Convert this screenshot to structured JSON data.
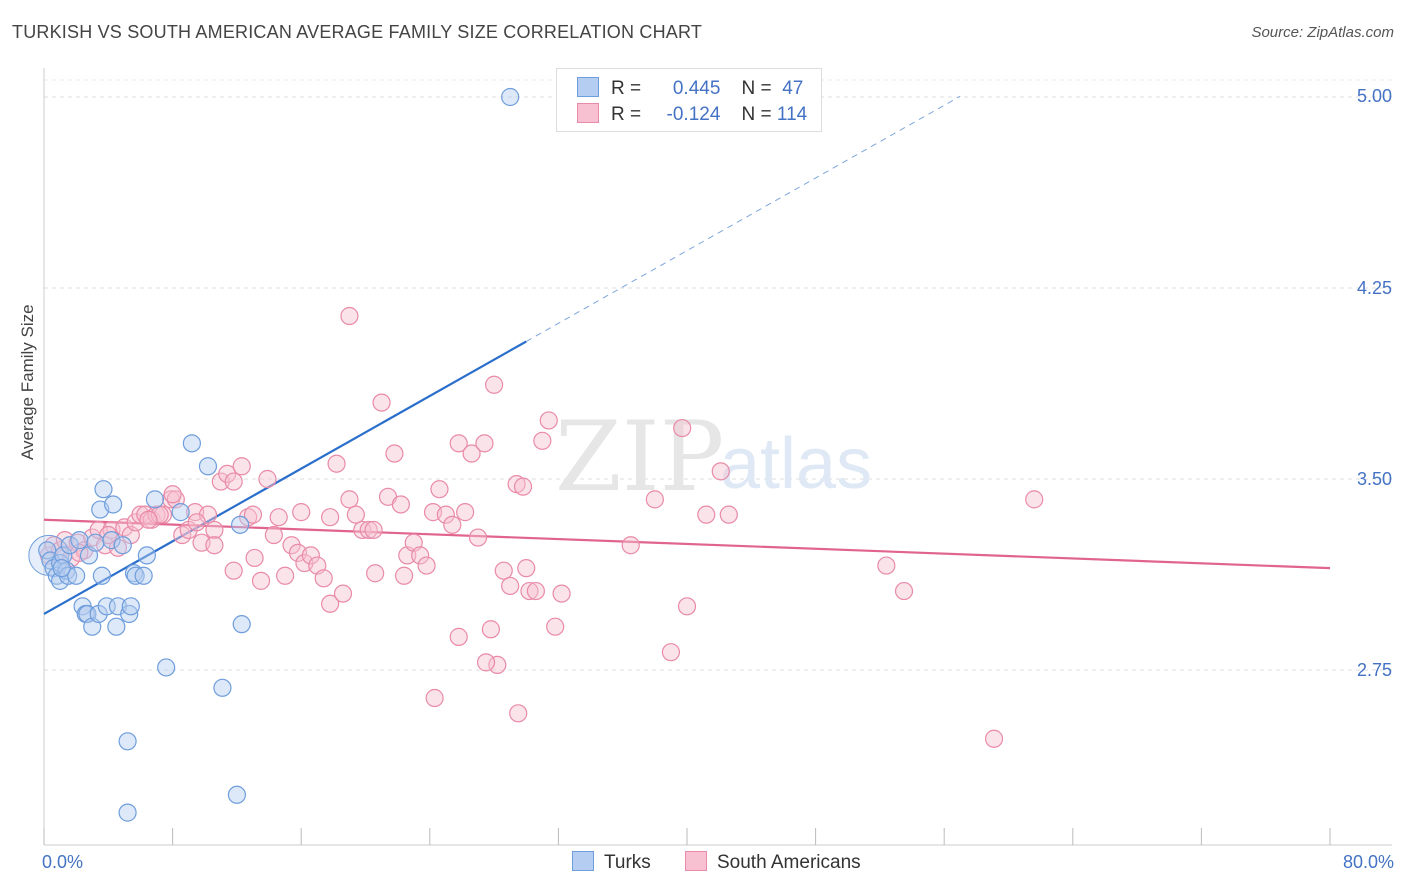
{
  "title": "TURKISH VS SOUTH AMERICAN AVERAGE FAMILY SIZE CORRELATION CHART",
  "source": "Source: ZipAtlas.com",
  "watermark": {
    "zip": "ZIP",
    "atlas": "atlas"
  },
  "legend": {
    "turks": {
      "r_label": "R =",
      "r_value": "0.445",
      "n_label": "N =",
      "n_value": "47"
    },
    "south": {
      "r_label": "R =",
      "r_value": "-0.124",
      "n_label": "N =",
      "n_value": "114"
    }
  },
  "bottom_legend": {
    "turks": "Turks",
    "south": "South Americans"
  },
  "colors": {
    "turks_fill": "#b4cdf0",
    "turks_stroke": "#6f9edc",
    "turks_line": "#2b6fcc",
    "south_fill": "#f7c1d1",
    "south_stroke": "#e98aa8",
    "south_line": "#e0648e"
  },
  "chart_data": {
    "type": "scatter",
    "title": "TURKISH VS SOUTH AMERICAN AVERAGE FAMILY SIZE CORRELATION CHART",
    "xlabel": "",
    "ylabel": "Average Family Size",
    "xlim": [
      0,
      80
    ],
    "ylim": [
      2.0,
      5.1
    ],
    "x_tick_labels": [
      "0.0%",
      "80.0%"
    ],
    "y_ticks": [
      2.75,
      3.5,
      4.25,
      5.0
    ],
    "y_tick_labels": [
      "2.75",
      "3.50",
      "4.25",
      "5.00"
    ],
    "series": [
      {
        "name": "Turks",
        "r": 0.445,
        "n": 47,
        "trend": {
          "x0": 0,
          "y0": 2.97,
          "x1": 30,
          "y1": 4.04,
          "dashed_to_x": 57
        },
        "points": [
          [
            0.2,
            3.22
          ],
          [
            0.4,
            3.18
          ],
          [
            0.6,
            3.15
          ],
          [
            0.8,
            3.12
          ],
          [
            1.0,
            3.17
          ],
          [
            1.2,
            3.2
          ],
          [
            1.0,
            3.1
          ],
          [
            1.4,
            3.14
          ],
          [
            1.6,
            3.24
          ],
          [
            1.5,
            3.12
          ],
          [
            2.0,
            3.12
          ],
          [
            2.2,
            3.26
          ],
          [
            2.4,
            3.0
          ],
          [
            2.6,
            2.97
          ],
          [
            2.8,
            3.2
          ],
          [
            2.7,
            2.97
          ],
          [
            3.0,
            2.92
          ],
          [
            3.2,
            3.25
          ],
          [
            3.4,
            2.97
          ],
          [
            3.5,
            3.38
          ],
          [
            3.6,
            3.12
          ],
          [
            3.7,
            3.46
          ],
          [
            3.9,
            3.0
          ],
          [
            4.2,
            3.26
          ],
          [
            4.3,
            3.4
          ],
          [
            4.6,
            3.0
          ],
          [
            4.5,
            2.92
          ],
          [
            4.9,
            3.24
          ],
          [
            5.2,
            2.47
          ],
          [
            5.3,
            2.97
          ],
          [
            5.4,
            3.0
          ],
          [
            5.6,
            3.13
          ],
          [
            5.7,
            3.12
          ],
          [
            6.2,
            3.12
          ],
          [
            6.4,
            3.2
          ],
          [
            6.9,
            3.42
          ],
          [
            7.6,
            2.76
          ],
          [
            8.5,
            3.37
          ],
          [
            9.2,
            3.64
          ],
          [
            10.2,
            3.55
          ],
          [
            11.1,
            2.68
          ],
          [
            12.0,
            2.26
          ],
          [
            12.2,
            3.32
          ],
          [
            12.3,
            2.93
          ],
          [
            5.2,
            2.19
          ],
          [
            29.0,
            5.0
          ],
          [
            1.1,
            3.15
          ]
        ]
      },
      {
        "name": "South Americans",
        "r": -0.124,
        "n": 114,
        "trend": {
          "x0": 0,
          "y0": 3.34,
          "x1": 80,
          "y1": 3.15
        },
        "points": [
          [
            0.3,
            3.2
          ],
          [
            0.6,
            3.24
          ],
          [
            1.0,
            3.22
          ],
          [
            1.3,
            3.26
          ],
          [
            1.7,
            3.19
          ],
          [
            2.1,
            3.25
          ],
          [
            2.5,
            3.22
          ],
          [
            3.0,
            3.27
          ],
          [
            3.4,
            3.3
          ],
          [
            3.8,
            3.24
          ],
          [
            4.2,
            3.3
          ],
          [
            4.6,
            3.23
          ],
          [
            5.0,
            3.31
          ],
          [
            5.4,
            3.28
          ],
          [
            5.7,
            3.33
          ],
          [
            6.0,
            3.36
          ],
          [
            6.3,
            3.36
          ],
          [
            6.7,
            3.34
          ],
          [
            7.0,
            3.36
          ],
          [
            7.4,
            3.36
          ],
          [
            7.9,
            3.42
          ],
          [
            8.2,
            3.42
          ],
          [
            8.6,
            3.28
          ],
          [
            9.0,
            3.3
          ],
          [
            9.4,
            3.37
          ],
          [
            9.8,
            3.25
          ],
          [
            10.2,
            3.36
          ],
          [
            10.6,
            3.3
          ],
          [
            11.0,
            3.49
          ],
          [
            11.4,
            3.52
          ],
          [
            11.8,
            3.49
          ],
          [
            12.3,
            3.55
          ],
          [
            12.7,
            3.35
          ],
          [
            13.1,
            3.19
          ],
          [
            13.5,
            3.1
          ],
          [
            13.9,
            3.5
          ],
          [
            14.3,
            3.28
          ],
          [
            14.6,
            3.35
          ],
          [
            15.0,
            3.12
          ],
          [
            15.4,
            3.24
          ],
          [
            15.8,
            3.21
          ],
          [
            16.2,
            3.17
          ],
          [
            16.6,
            3.2
          ],
          [
            17.0,
            3.16
          ],
          [
            17.4,
            3.11
          ],
          [
            17.8,
            3.01
          ],
          [
            18.2,
            3.56
          ],
          [
            18.6,
            3.05
          ],
          [
            19.0,
            3.42
          ],
          [
            19.4,
            3.36
          ],
          [
            19.8,
            3.3
          ],
          [
            20.2,
            3.3
          ],
          [
            20.6,
            3.13
          ],
          [
            21.0,
            3.8
          ],
          [
            21.4,
            3.43
          ],
          [
            21.8,
            3.6
          ],
          [
            22.2,
            3.4
          ],
          [
            22.6,
            3.2
          ],
          [
            23.0,
            3.25
          ],
          [
            23.4,
            3.2
          ],
          [
            23.8,
            3.16
          ],
          [
            24.2,
            3.37
          ],
          [
            24.6,
            3.46
          ],
          [
            25.0,
            3.36
          ],
          [
            25.4,
            3.32
          ],
          [
            25.8,
            3.64
          ],
          [
            26.2,
            3.37
          ],
          [
            26.6,
            3.6
          ],
          [
            27.0,
            3.27
          ],
          [
            27.4,
            3.64
          ],
          [
            27.8,
            2.91
          ],
          [
            28.2,
            2.77
          ],
          [
            28.6,
            3.14
          ],
          [
            29.0,
            3.08
          ],
          [
            29.4,
            3.48
          ],
          [
            29.8,
            3.47
          ],
          [
            30.2,
            3.06
          ],
          [
            30.6,
            3.06
          ],
          [
            31.0,
            3.65
          ],
          [
            31.4,
            3.73
          ],
          [
            31.8,
            2.92
          ],
          [
            32.2,
            3.05
          ],
          [
            39.7,
            3.7
          ],
          [
            41.2,
            3.36
          ],
          [
            42.1,
            3.53
          ],
          [
            42.6,
            3.36
          ],
          [
            38.0,
            3.42
          ],
          [
            36.5,
            3.24
          ],
          [
            40.0,
            3.0
          ],
          [
            39.0,
            2.82
          ],
          [
            52.4,
            3.16
          ],
          [
            53.5,
            3.06
          ],
          [
            61.6,
            3.42
          ],
          [
            59.1,
            2.48
          ],
          [
            19.0,
            4.14
          ],
          [
            28.0,
            3.87
          ],
          [
            24.3,
            2.64
          ],
          [
            27.5,
            2.78
          ],
          [
            29.5,
            2.58
          ],
          [
            20.5,
            3.3
          ],
          [
            16.0,
            3.37
          ],
          [
            13.0,
            3.36
          ],
          [
            9.5,
            3.33
          ],
          [
            7.2,
            3.36
          ],
          [
            8.0,
            3.44
          ],
          [
            10.6,
            3.24
          ],
          [
            17.8,
            3.35
          ],
          [
            22.4,
            3.12
          ],
          [
            25.8,
            2.88
          ],
          [
            30.0,
            3.15
          ],
          [
            4.0,
            3.28
          ],
          [
            2.2,
            3.21
          ],
          [
            6.5,
            3.34
          ],
          [
            11.8,
            3.14
          ]
        ]
      }
    ]
  },
  "y_axis_label": "Average Family Size",
  "x_axis": {
    "left": "0.0%",
    "right": "80.0%"
  },
  "y_axis_ticks": [
    "5.00",
    "4.25",
    "3.50",
    "2.75"
  ]
}
